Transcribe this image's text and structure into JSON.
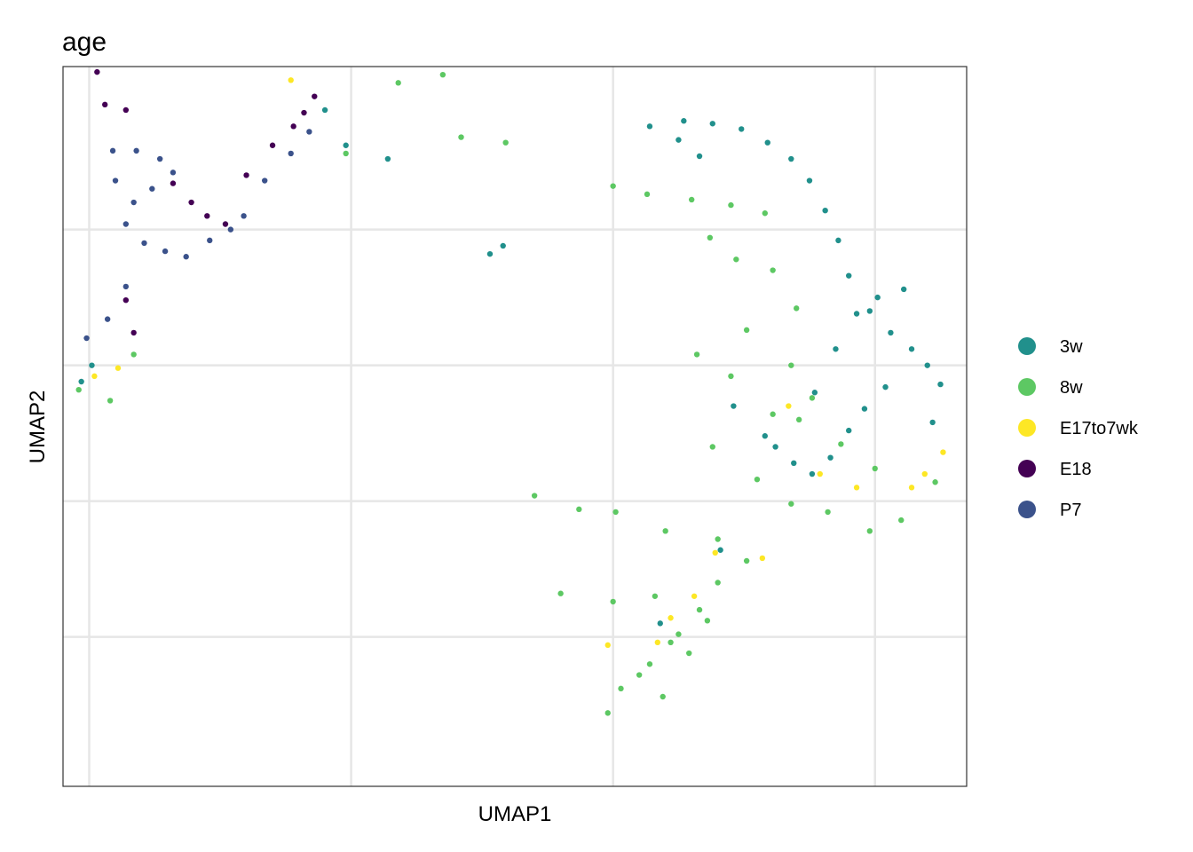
{
  "chart_data": {
    "type": "scatter",
    "title": "age",
    "xlabel": "UMAP1",
    "ylabel": "UMAP2",
    "x_tick_labels": [],
    "y_tick_labels": [],
    "grid": true,
    "legend_position": "right",
    "xlim": [
      -11,
      23.5
    ],
    "ylim": [
      -15.5,
      11
    ],
    "legend": [
      {
        "name": "3w",
        "color": "#21908C"
      },
      {
        "name": "8w",
        "color": "#5DC863"
      },
      {
        "name": "E17to7wk",
        "color": "#FDE725"
      },
      {
        "name": "E18",
        "color": "#440154"
      },
      {
        "name": "P7",
        "color": "#3B528B"
      }
    ],
    "series": [
      {
        "name": "3w",
        "color": "#21908C",
        "x": [
          11.4,
          12.7,
          13.8,
          14.9,
          15.9,
          16.8,
          17.5,
          18.1,
          18.6,
          19.0,
          19.8,
          20.6,
          21.4,
          22.0,
          22.5,
          19.6,
          20.4,
          19.0,
          18.3,
          17.6,
          16.9,
          15.8,
          14.6,
          13.3,
          12.5,
          -0.2,
          1.4,
          -1.0,
          -10.3,
          -9.9,
          5.3,
          5.8,
          11.8,
          14.1,
          16.2,
          17.7,
          18.5,
          19.3,
          20.1,
          21.1,
          22.2
        ],
        "y": [
          8.8,
          9.0,
          8.9,
          8.7,
          8.2,
          7.6,
          6.8,
          5.7,
          4.6,
          3.3,
          2.0,
          1.2,
          0.6,
          0.0,
          -0.7,
          -1.6,
          -0.8,
          -2.4,
          -3.4,
          -4.0,
          -3.6,
          -2.6,
          -1.5,
          7.7,
          8.3,
          8.1,
          7.6,
          9.4,
          -0.6,
          0.0,
          4.1,
          4.4,
          -9.5,
          -6.8,
          -3.0,
          -1.0,
          0.6,
          1.9,
          2.5,
          2.8,
          -2.1
        ]
      },
      {
        "name": "8w",
        "color": "#5DC863",
        "x": [
          10.0,
          11.3,
          13.0,
          14.5,
          15.8,
          13.7,
          14.7,
          16.1,
          17.0,
          15.1,
          16.8,
          17.6,
          16.1,
          14.5,
          13.2,
          13.8,
          15.5,
          16.8,
          18.2,
          19.8,
          21.0,
          22.3,
          20.0,
          18.7,
          17.1,
          14.0,
          12.0,
          10.1,
          8.7,
          7.0,
          8.0,
          10.0,
          11.6,
          12.2,
          11.4,
          10.3,
          9.8,
          11.0,
          12.5,
          13.3,
          14.0,
          15.1,
          13.6,
          12.9,
          11.9,
          4.2,
          5.9,
          1.8,
          3.5,
          -0.2,
          -10.4,
          -9.2,
          -8.3
        ],
        "y": [
          6.6,
          6.3,
          6.1,
          5.9,
          5.6,
          4.7,
          3.9,
          3.5,
          2.1,
          1.3,
          0.0,
          -1.2,
          -1.8,
          -0.4,
          0.4,
          -3.0,
          -4.2,
          -5.1,
          -5.4,
          -6.1,
          -5.7,
          -4.3,
          -3.8,
          -2.9,
          -2.0,
          -6.4,
          -6.1,
          -5.4,
          -5.3,
          -4.8,
          -8.4,
          -8.7,
          -8.5,
          -10.2,
          -11.0,
          -11.9,
          -12.8,
          -11.4,
          -9.9,
          -9.0,
          -8.0,
          -7.2,
          -9.4,
          -10.6,
          -12.2,
          8.4,
          8.2,
          10.4,
          10.7,
          7.8,
          -0.9,
          -1.3,
          0.4
        ]
      },
      {
        "name": "E17to7wk",
        "color": "#FDE725",
        "x": [
          13.1,
          15.7,
          17.9,
          19.3,
          21.4,
          21.9,
          22.6,
          11.7,
          12.2,
          9.8,
          13.9,
          16.7,
          -9.8,
          -8.9,
          -2.3
        ],
        "y": [
          -8.5,
          -7.1,
          -4.0,
          -4.5,
          -4.5,
          -4.0,
          -3.2,
          -10.2,
          -9.3,
          -10.3,
          -6.9,
          -1.5,
          -0.4,
          -0.1,
          10.5
        ]
      },
      {
        "name": "E18",
        "color": "#440154",
        "x": [
          -9.4,
          -8.6,
          -6.8,
          -6.1,
          -5.5,
          -4.8,
          -4.0,
          -3.0,
          -2.2,
          -1.8,
          -1.4,
          -8.6,
          -8.3,
          -9.7
        ],
        "y": [
          9.6,
          9.4,
          6.7,
          6.0,
          5.5,
          5.2,
          7.0,
          8.1,
          8.8,
          9.3,
          9.9,
          2.4,
          1.2,
          10.8
        ]
      },
      {
        "name": "P7",
        "color": "#3B528B",
        "x": [
          -9.1,
          -8.2,
          -7.3,
          -6.8,
          -7.6,
          -8.3,
          -9.0,
          -8.6,
          -7.9,
          -7.1,
          -6.3,
          -5.4,
          -4.6,
          -4.1,
          -3.3,
          -2.3,
          -1.6,
          -10.1,
          -9.3,
          -8.6
        ],
        "y": [
          7.9,
          7.9,
          7.6,
          7.1,
          6.5,
          6.0,
          6.8,
          5.2,
          4.5,
          4.2,
          4.0,
          4.6,
          5.0,
          5.5,
          6.8,
          7.8,
          8.6,
          1.0,
          1.7,
          2.9
        ]
      }
    ]
  }
}
